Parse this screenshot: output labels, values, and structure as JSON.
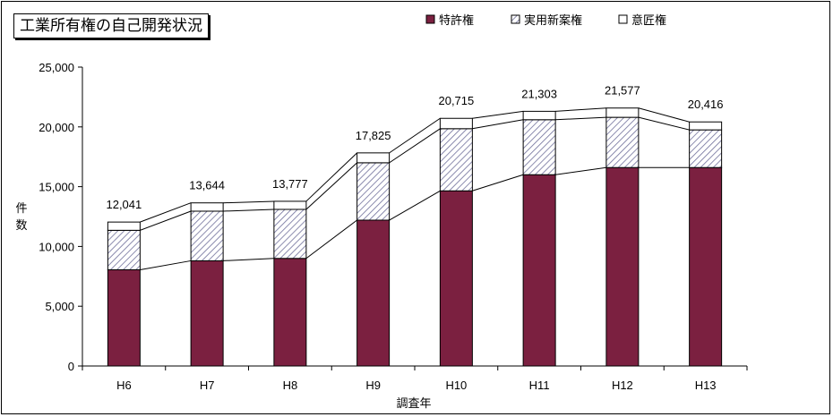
{
  "chart_data": {
    "type": "bar",
    "stacked": true,
    "title": "工業所有権の自己開発状況",
    "xlabel": "調査年",
    "ylabel": "件数",
    "categories": [
      "H6",
      "H7",
      "H8",
      "H9",
      "H10",
      "H11",
      "H12",
      "H13"
    ],
    "series": [
      {
        "name": "特許権",
        "values": [
          8050,
          8800,
          9000,
          12200,
          14650,
          16000,
          16600,
          16600
        ],
        "color": "#7b2040"
      },
      {
        "name": "実用新案権",
        "values": [
          3300,
          4150,
          4100,
          4800,
          5200,
          4600,
          4200,
          3150
        ],
        "color": "#c8c8e0"
      },
      {
        "name": "意匠権",
        "values": [
          691,
          694,
          677,
          825,
          865,
          703,
          777,
          666
        ],
        "color": "#ffffff"
      }
    ],
    "totals": [
      12041,
      13644,
      13777,
      17825,
      20715,
      21303,
      21577,
      20416
    ],
    "total_labels": [
      "12,041",
      "13,644",
      "13,777",
      "17,825",
      "20,715",
      "21,303",
      "21,577",
      "20,416"
    ],
    "ylim": [
      0,
      25000
    ],
    "yticks": [
      0,
      5000,
      10000,
      15000,
      20000,
      25000
    ],
    "ytick_labels": [
      "0",
      "5,000",
      "10,000",
      "15,000",
      "20,000",
      "25,000"
    ],
    "legend_position": "top-right",
    "series_lines": true,
    "grid": false
  }
}
